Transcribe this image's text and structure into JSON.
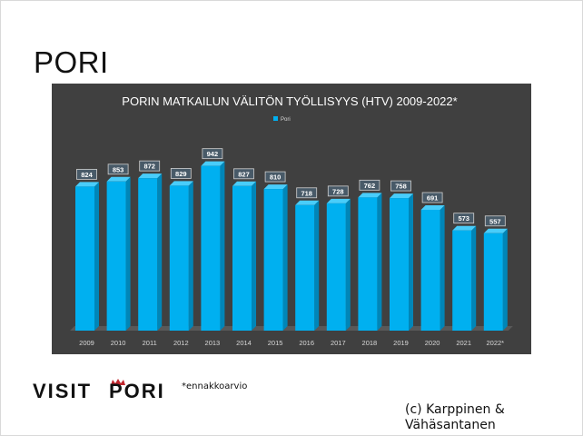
{
  "slide": {
    "title": "PORI",
    "footnote": "*ennakkoarvio",
    "credit": "(c) Karppinen &\nVähäsantanen",
    "logo_text": "VISIT PORI"
  },
  "colors": {
    "chart_bg": "#404040",
    "bar_front": "#00b0f0",
    "bar_side": "#0086b8",
    "bar_top": "#49cdfa",
    "label_box": "#485a68",
    "logo_crown": "#c0262d"
  },
  "chart_data": {
    "type": "bar",
    "title": "PORIN MATKAILUN VÄLITÖN TYÖLLISYYS (HTV) 2009-2022*",
    "legend": "Pori",
    "legend_position": "top",
    "categories": [
      "2009",
      "2010",
      "2011",
      "2012",
      "2013",
      "2014",
      "2015",
      "2016",
      "2017",
      "2018",
      "2019",
      "2020",
      "2021",
      "2022*"
    ],
    "series": [
      {
        "name": "Pori",
        "values": [
          824,
          853,
          872,
          829,
          942,
          827,
          810,
          718,
          728,
          762,
          758,
          691,
          573,
          557
        ]
      }
    ],
    "ylim": [
      0,
      1020
    ],
    "grid": false
  }
}
